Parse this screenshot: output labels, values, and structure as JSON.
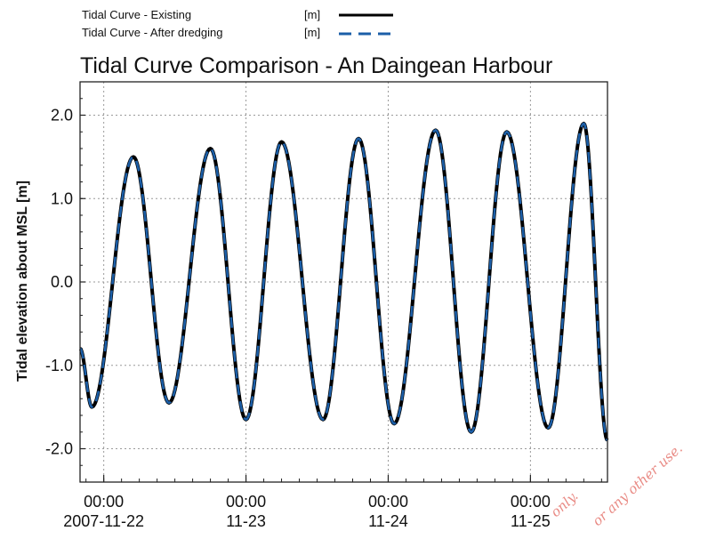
{
  "chart_data": {
    "type": "line",
    "title": "Tidal Curve Comparison - An Daingean Harbour",
    "xlabel": "",
    "ylabel": "Tidal elevation about MSL [m]",
    "ylim": [
      -2.4,
      2.4
    ],
    "yticks": [
      2.0,
      1.0,
      0.0,
      -1.0,
      -2.0
    ],
    "ytick_labels": [
      "2.0",
      "1.0",
      "0.0",
      "-1.0",
      "-2.0"
    ],
    "x_range": [
      "2007-11-21 20:00",
      "2007-11-25 13:00"
    ],
    "xticks": [
      {
        "x": "2007-11-22 00:00",
        "time": "00:00",
        "date": "2007-11-22"
      },
      {
        "x": "2007-11-23 00:00",
        "time": "00:00",
        "date": "11-23"
      },
      {
        "x": "2007-11-24 00:00",
        "time": "00:00",
        "date": "11-24"
      },
      {
        "x": "2007-11-25 00:00",
        "time": "00:00",
        "date": "11-25"
      }
    ],
    "grid": true,
    "legend_position": "top-left",
    "series": [
      {
        "name": "Tidal Curve - Existing",
        "unit": "[m]",
        "style": "solid",
        "color": "#000000",
        "x": [
          "2007-11-21 20:00",
          "2007-11-21 22:00",
          "2007-11-22 05:00",
          "2007-11-22 11:00",
          "2007-11-22 18:00",
          "2007-11-23 00:00",
          "2007-11-23 06:00",
          "2007-11-23 13:00",
          "2007-11-23 19:00",
          "2007-11-24 01:00",
          "2007-11-24 08:00",
          "2007-11-24 14:00",
          "2007-11-24 20:00",
          "2007-11-25 03:00",
          "2007-11-25 09:00",
          "2007-11-25 13:00"
        ],
        "y": [
          -0.8,
          -1.5,
          1.5,
          -1.45,
          1.6,
          -1.65,
          1.68,
          -1.65,
          1.72,
          -1.7,
          1.82,
          -1.8,
          1.8,
          -1.75,
          1.9,
          -1.9
        ]
      },
      {
        "name": "Tidal Curve - After dredging",
        "unit": "[m]",
        "style": "dashed",
        "color": "#1c5fa8",
        "x": [
          "2007-11-21 20:00",
          "2007-11-21 22:00",
          "2007-11-22 05:00",
          "2007-11-22 11:00",
          "2007-11-22 18:00",
          "2007-11-23 00:00",
          "2007-11-23 06:00",
          "2007-11-23 13:00",
          "2007-11-23 19:00",
          "2007-11-24 01:00",
          "2007-11-24 08:00",
          "2007-11-24 14:00",
          "2007-11-24 20:00",
          "2007-11-25 03:00",
          "2007-11-25 09:00",
          "2007-11-25 13:00"
        ],
        "y": [
          -0.8,
          -1.5,
          1.5,
          -1.45,
          1.6,
          -1.65,
          1.68,
          -1.65,
          1.72,
          -1.7,
          1.82,
          -1.8,
          1.8,
          -1.75,
          1.9,
          -1.9
        ]
      }
    ]
  },
  "watermark": {
    "line1": "only.",
    "line2": "or any other use."
  }
}
